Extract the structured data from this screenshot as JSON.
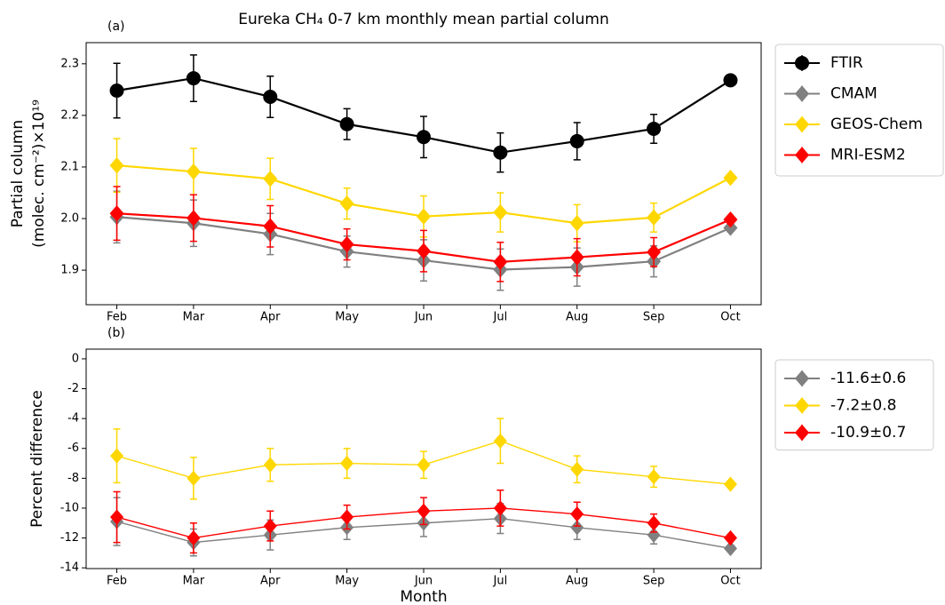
{
  "chart_data": [
    {
      "type": "line",
      "panel_label": "(a)",
      "title": "Eureka CH₄ 0-7 km monthly mean partial column",
      "ylabel": [
        "Partial column",
        "(molec. cm⁻²)×10¹⁹"
      ],
      "categories": [
        "Feb",
        "Mar",
        "Apr",
        "May",
        "Jun",
        "Jul",
        "Aug",
        "Sep",
        "Oct"
      ],
      "ylim": [
        1.833,
        2.341
      ],
      "yticks": [
        1.9,
        {
          "value": 2,
          "label": "2.0"
        },
        2.1,
        2.2,
        2.3
      ],
      "legend": "outside upper right",
      "series": [
        {
          "name": "FTIR",
          "color": "#000000",
          "marker": "circle",
          "values": [
            2.248,
            2.272,
            2.236,
            2.183,
            2.158,
            2.128,
            2.15,
            2.174,
            2.268
          ],
          "errors": [
            0.053,
            0.045,
            0.04,
            0.03,
            0.04,
            0.038,
            0.036,
            0.028,
            0.005
          ]
        },
        {
          "name": "CMAM",
          "color": "#808080",
          "marker": "diamond",
          "values": [
            2.003,
            1.991,
            1.97,
            1.936,
            1.919,
            1.901,
            1.906,
            1.917,
            1.982
          ],
          "errors": [
            0.05,
            0.045,
            0.04,
            0.03,
            0.04,
            0.04,
            0.037,
            0.03,
            0.005
          ]
        },
        {
          "name": "GEOS-Chem",
          "color": "#ffd700",
          "marker": "diamond",
          "values": [
            2.103,
            2.091,
            2.077,
            2.029,
            2.004,
            2.012,
            1.991,
            2.002,
            2.079
          ],
          "errors": [
            0.052,
            0.045,
            0.04,
            0.03,
            0.04,
            0.038,
            0.036,
            0.028,
            0.005
          ]
        },
        {
          "name": "MRI-ESM2",
          "color": "#ff0000",
          "marker": "diamond",
          "values": [
            2.01,
            2.001,
            1.985,
            1.95,
            1.937,
            1.916,
            1.925,
            1.935,
            1.998
          ],
          "errors": [
            0.052,
            0.045,
            0.04,
            0.03,
            0.04,
            0.038,
            0.036,
            0.028,
            0.005
          ]
        }
      ]
    },
    {
      "type": "line",
      "panel_label": "(b)",
      "ylabel": [
        "Percent difference"
      ],
      "xlabel": "Month",
      "categories": [
        "Feb",
        "Mar",
        "Apr",
        "May",
        "Jun",
        "Jul",
        "Aug",
        "Sep",
        "Oct"
      ],
      "ylim": [
        -14.05,
        0.65
      ],
      "yticks": [
        -14,
        -12,
        -10,
        -8,
        -6,
        -4,
        -2,
        0
      ],
      "legend": "outside upper right",
      "series": [
        {
          "name": "-11.6±0.6",
          "color": "#808080",
          "marker": "diamond",
          "values": [
            -10.9,
            -12.3,
            -11.8,
            -11.3,
            -11.0,
            -10.7,
            -11.3,
            -11.8,
            -12.7
          ],
          "errors": [
            1.6,
            0.9,
            1.0,
            0.8,
            0.9,
            1.0,
            0.8,
            0.6,
            0.1
          ]
        },
        {
          "name": "-7.2±0.8",
          "color": "#ffd700",
          "marker": "diamond",
          "values": [
            -6.5,
            -8.0,
            -7.1,
            -7.0,
            -7.1,
            -5.5,
            -7.4,
            -7.9,
            -8.4
          ],
          "errors": [
            1.8,
            1.4,
            1.1,
            1.0,
            0.9,
            1.5,
            0.9,
            0.7,
            0.1
          ]
        },
        {
          "name": "-10.9±0.7",
          "color": "#ff0000",
          "marker": "diamond",
          "values": [
            -10.6,
            -12.0,
            -11.2,
            -10.6,
            -10.2,
            -10.0,
            -10.4,
            -11.0,
            -12.0
          ],
          "errors": [
            1.7,
            1.0,
            1.0,
            0.8,
            0.9,
            1.2,
            0.8,
            0.6,
            0.1
          ]
        }
      ]
    }
  ]
}
